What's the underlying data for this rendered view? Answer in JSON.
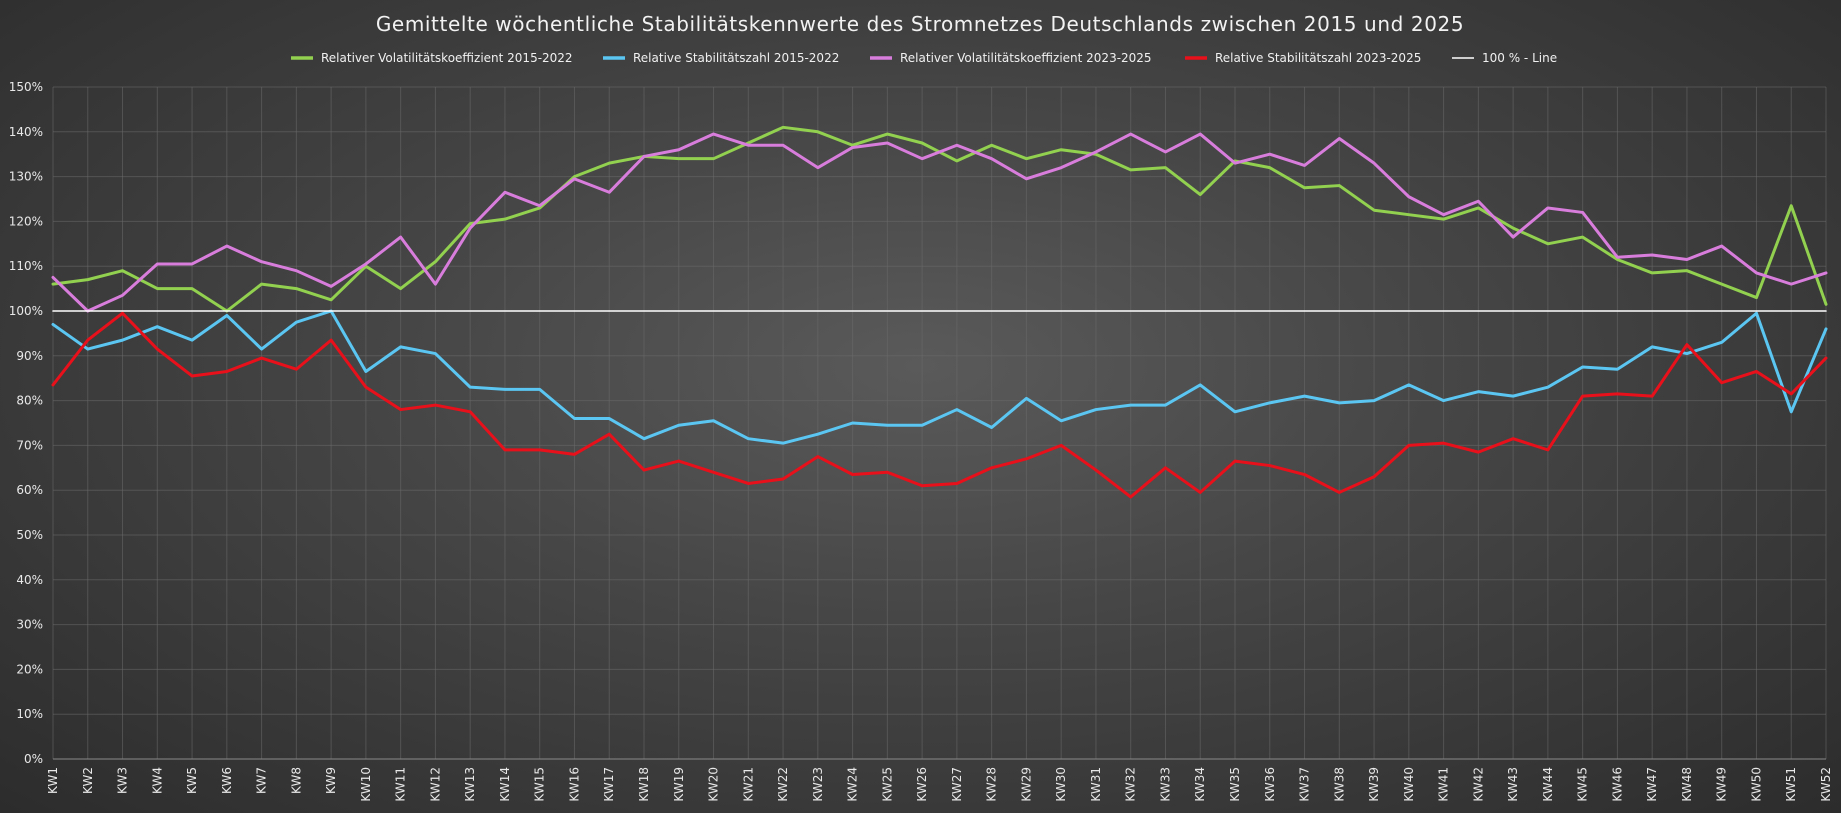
{
  "chart_data": {
    "type": "line",
    "title": "Gemittelte wöchentliche Stabilitätskennwerte des Stromnetzes Deutschlands zwischen 2015 und 2025",
    "xlabel": "",
    "ylabel": "",
    "ylim": [
      0,
      150
    ],
    "y_tick_step": 10,
    "y_tick_suffix": "%",
    "grid": true,
    "legend_position": "top",
    "categories": [
      "KW1",
      "KW2",
      "KW3",
      "KW4",
      "KW5",
      "KW6",
      "KW7",
      "KW8",
      "KW9",
      "KW10",
      "KW11",
      "KW12",
      "KW13",
      "KW14",
      "KW15",
      "KW16",
      "KW17",
      "KW18",
      "KW19",
      "KW20",
      "KW21",
      "KW22",
      "KW23",
      "KW24",
      "KW25",
      "KW26",
      "KW27",
      "KW28",
      "KW29",
      "KW30",
      "KW31",
      "KW32",
      "KW33",
      "KW34",
      "KW35",
      "KW36",
      "KW37",
      "KW38",
      "KW39",
      "KW40",
      "KW41",
      "KW42",
      "KW43",
      "KW44",
      "KW45",
      "KW46",
      "KW47",
      "KW48",
      "KW49",
      "KW50",
      "KW51",
      "KW52"
    ],
    "series": [
      {
        "name": "Relativer Volatilitätskoeffizient 2015-2022",
        "color": "#92d050",
        "values": [
          106,
          107,
          109,
          105,
          105,
          100,
          106,
          105,
          102.5,
          110,
          105,
          111,
          119.5,
          120.5,
          123,
          130,
          133,
          134.5,
          134,
          134,
          137.5,
          141,
          140,
          137,
          139.5,
          137.5,
          133.5,
          137,
          134,
          136,
          135,
          131.5,
          132,
          126,
          133.5,
          132,
          127.5,
          128,
          122.5,
          121.5,
          120.5,
          123,
          118.5,
          115,
          116.5,
          111.5,
          108.5,
          109,
          106,
          103,
          123.5,
          101.5
        ]
      },
      {
        "name": "Relative Stabilitätszahl 2015-2022",
        "color": "#5bc6f2",
        "values": [
          97,
          91.5,
          93.5,
          96.5,
          93.5,
          99,
          91.5,
          97.5,
          100,
          86.5,
          92,
          90.5,
          83,
          82.5,
          82.5,
          76,
          76,
          71.5,
          74.5,
          75.5,
          71.5,
          70.5,
          72.5,
          75,
          74.5,
          74.5,
          78,
          74,
          80.5,
          75.5,
          78,
          79,
          79,
          83.5,
          77.5,
          79.5,
          81,
          79.5,
          80,
          83.5,
          80,
          82,
          81,
          83,
          87.5,
          87,
          92,
          90.5,
          93,
          99.5,
          77.5,
          96
        ]
      },
      {
        "name": "Relativer Volatilitätskoeffizient 2023-2025",
        "color": "#d87ddb",
        "values": [
          107.5,
          100,
          103.5,
          110.5,
          110.5,
          114.5,
          111,
          109,
          105.5,
          110.5,
          116.5,
          106,
          118.5,
          126.5,
          123.5,
          129.5,
          126.5,
          134.5,
          136,
          139.5,
          137,
          137,
          132,
          136.5,
          137.5,
          134,
          137,
          134,
          129.5,
          132,
          135.5,
          139.5,
          135.5,
          139.5,
          133,
          135,
          132.5,
          138.5,
          133,
          125.5,
          121.5,
          124.5,
          116.5,
          123,
          122,
          112,
          112.5,
          111.5,
          114.5,
          108.5,
          106,
          108.5
        ]
      },
      {
        "name": "Relative Stabilitätszahl 2023-2025",
        "color": "#e8101a",
        "values": [
          83.5,
          93.5,
          99.5,
          91.5,
          85.5,
          86.5,
          89.5,
          87,
          93.5,
          83,
          78,
          79,
          77.5,
          69,
          69,
          68,
          72.5,
          64.5,
          66.5,
          64,
          61.5,
          62.5,
          67.5,
          63.5,
          64,
          61,
          61.5,
          65,
          67,
          70,
          64.5,
          58.5,
          65,
          59.5,
          66.5,
          65.5,
          63.5,
          59.5,
          63,
          70,
          70.5,
          68.5,
          71.5,
          69,
          81,
          81.5,
          81,
          92.5,
          84,
          86.5,
          81.5,
          89.5
        ]
      },
      {
        "name": "100 % - Line",
        "color": "#ffffff",
        "values": [
          100,
          100,
          100,
          100,
          100,
          100,
          100,
          100,
          100,
          100,
          100,
          100,
          100,
          100,
          100,
          100,
          100,
          100,
          100,
          100,
          100,
          100,
          100,
          100,
          100,
          100,
          100,
          100,
          100,
          100,
          100,
          100,
          100,
          100,
          100,
          100,
          100,
          100,
          100,
          100,
          100,
          100,
          100,
          100,
          100,
          100,
          100,
          100,
          100,
          100,
          100,
          100
        ]
      }
    ]
  }
}
